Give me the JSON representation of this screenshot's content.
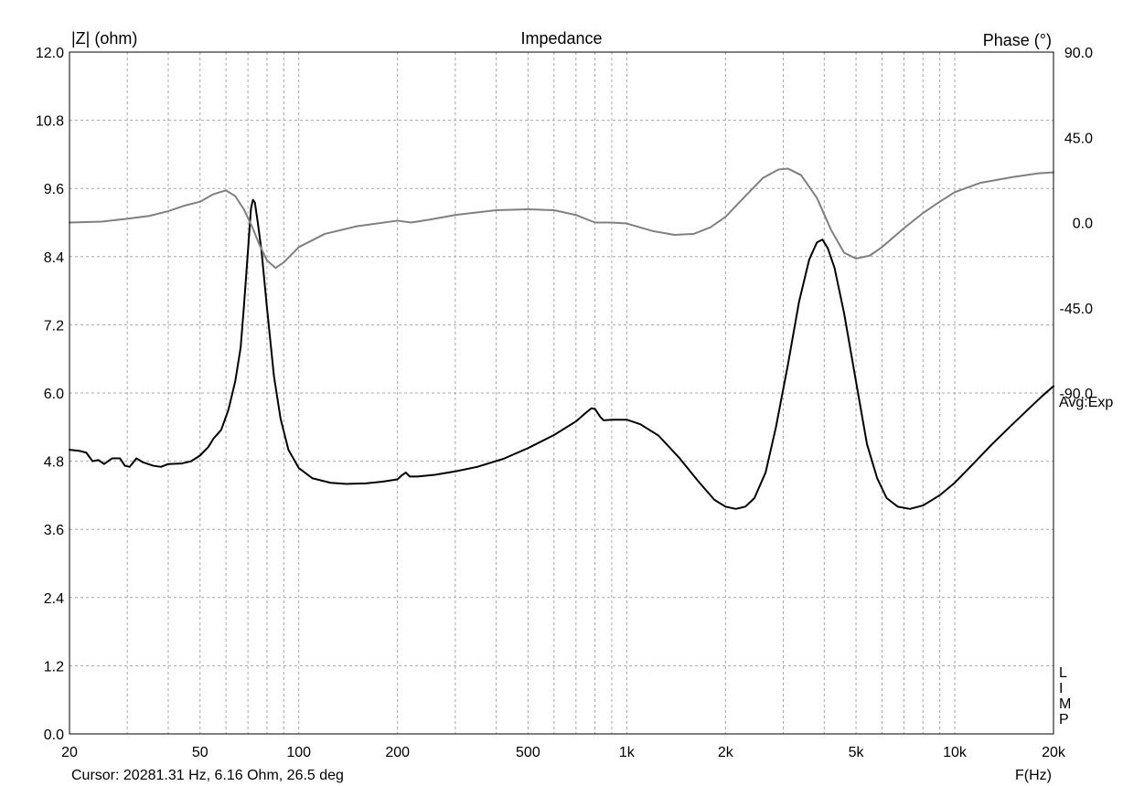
{
  "chart_data": {
    "type": "line",
    "title": "Impedance",
    "ylabel": "|Z| (ohm)",
    "y2label": "Phase (°)",
    "xlabel": "F(Hz)",
    "x_scale": "log",
    "xlim": [
      20,
      20000
    ],
    "ylim": [
      0.0,
      12.0
    ],
    "y2lim": [
      -270,
      90
    ],
    "grid": true,
    "x_ticks": [
      {
        "v": 20,
        "label": "20"
      },
      {
        "v": 50,
        "label": "50"
      },
      {
        "v": 100,
        "label": "100"
      },
      {
        "v": 200,
        "label": "200"
      },
      {
        "v": 500,
        "label": "500"
      },
      {
        "v": 1000,
        "label": "1k"
      },
      {
        "v": 2000,
        "label": "2k"
      },
      {
        "v": 5000,
        "label": "5k"
      },
      {
        "v": 10000,
        "label": "10k"
      },
      {
        "v": 20000,
        "label": "20k"
      }
    ],
    "y_ticks": [
      "0.0",
      "1.2",
      "2.4",
      "3.6",
      "4.8",
      "6.0",
      "7.2",
      "8.4",
      "9.6",
      "10.8",
      "12.0"
    ],
    "y2_ticks": [
      {
        "v": 90,
        "label": "90.0"
      },
      {
        "v": 45,
        "label": "45.0"
      },
      {
        "v": 0,
        "label": "0.0"
      },
      {
        "v": -45,
        "label": "-45.0"
      },
      {
        "v": -90,
        "label": "-90.0"
      }
    ],
    "avg_label": "Avg:Exp",
    "limp_label": [
      "L",
      "I",
      "M",
      "P"
    ],
    "cursor_text": "Cursor: 20281.31 Hz, 6.16 Ohm, 26.5 deg",
    "series": [
      {
        "axis": "left",
        "color": "#000000",
        "points": [
          [
            20,
            5.0
          ],
          [
            21.5,
            4.98
          ],
          [
            22.5,
            4.95
          ],
          [
            23.5,
            4.8
          ],
          [
            24.5,
            4.82
          ],
          [
            25.5,
            4.75
          ],
          [
            27,
            4.85
          ],
          [
            28.5,
            4.85
          ],
          [
            29.5,
            4.72
          ],
          [
            30.5,
            4.7
          ],
          [
            32,
            4.85
          ],
          [
            33.5,
            4.78
          ],
          [
            36,
            4.72
          ],
          [
            38,
            4.7
          ],
          [
            40,
            4.75
          ],
          [
            44,
            4.76
          ],
          [
            47,
            4.8
          ],
          [
            50,
            4.9
          ],
          [
            53,
            5.05
          ],
          [
            55,
            5.2
          ],
          [
            58,
            5.35
          ],
          [
            61,
            5.7
          ],
          [
            64,
            6.2
          ],
          [
            66.5,
            6.8
          ],
          [
            68,
            7.5
          ],
          [
            70,
            8.5
          ],
          [
            71.5,
            9.25
          ],
          [
            72.5,
            9.4
          ],
          [
            73.5,
            9.35
          ],
          [
            75,
            9.0
          ],
          [
            77,
            8.5
          ],
          [
            80,
            7.5
          ],
          [
            84,
            6.3
          ],
          [
            88,
            5.55
          ],
          [
            93,
            5.0
          ],
          [
            100,
            4.68
          ],
          [
            110,
            4.5
          ],
          [
            125,
            4.42
          ],
          [
            140,
            4.4
          ],
          [
            160,
            4.41
          ],
          [
            180,
            4.44
          ],
          [
            200,
            4.48
          ],
          [
            206,
            4.55
          ],
          [
            212,
            4.6
          ],
          [
            218,
            4.53
          ],
          [
            230,
            4.53
          ],
          [
            260,
            4.56
          ],
          [
            300,
            4.62
          ],
          [
            350,
            4.7
          ],
          [
            420,
            4.84
          ],
          [
            500,
            5.03
          ],
          [
            600,
            5.26
          ],
          [
            700,
            5.5
          ],
          [
            750,
            5.65
          ],
          [
            780,
            5.73
          ],
          [
            800,
            5.72
          ],
          [
            830,
            5.58
          ],
          [
            850,
            5.52
          ],
          [
            900,
            5.53
          ],
          [
            1000,
            5.53
          ],
          [
            1100,
            5.45
          ],
          [
            1250,
            5.25
          ],
          [
            1450,
            4.85
          ],
          [
            1650,
            4.45
          ],
          [
            1850,
            4.12
          ],
          [
            2000,
            4.0
          ],
          [
            2150,
            3.96
          ],
          [
            2300,
            4.0
          ],
          [
            2450,
            4.15
          ],
          [
            2650,
            4.6
          ],
          [
            2850,
            5.4
          ],
          [
            3100,
            6.5
          ],
          [
            3350,
            7.6
          ],
          [
            3600,
            8.35
          ],
          [
            3800,
            8.65
          ],
          [
            3950,
            8.7
          ],
          [
            4100,
            8.55
          ],
          [
            4300,
            8.2
          ],
          [
            4600,
            7.4
          ],
          [
            5000,
            6.2
          ],
          [
            5400,
            5.1
          ],
          [
            5800,
            4.5
          ],
          [
            6200,
            4.15
          ],
          [
            6700,
            4.0
          ],
          [
            7300,
            3.96
          ],
          [
            8000,
            4.02
          ],
          [
            9000,
            4.2
          ],
          [
            10000,
            4.42
          ],
          [
            11500,
            4.78
          ],
          [
            13000,
            5.1
          ],
          [
            15000,
            5.45
          ],
          [
            17000,
            5.75
          ],
          [
            18500,
            5.95
          ],
          [
            20000,
            6.12
          ]
        ]
      },
      {
        "axis": "right",
        "color": "#808080",
        "points": [
          [
            20,
            0.0
          ],
          [
            25,
            0.5
          ],
          [
            30,
            2.0
          ],
          [
            35,
            3.5
          ],
          [
            40,
            6.0
          ],
          [
            45,
            9.0
          ],
          [
            50,
            11.0
          ],
          [
            55,
            15.0
          ],
          [
            60,
            17.0
          ],
          [
            64,
            14.0
          ],
          [
            68,
            7.0
          ],
          [
            72,
            -2.0
          ],
          [
            76,
            -12.0
          ],
          [
            80,
            -20.0
          ],
          [
            85,
            -24.0
          ],
          [
            90,
            -21.0
          ],
          [
            100,
            -13.0
          ],
          [
            120,
            -6.0
          ],
          [
            150,
            -2.0
          ],
          [
            200,
            1.0
          ],
          [
            220,
            0.0
          ],
          [
            250,
            1.5
          ],
          [
            300,
            4.0
          ],
          [
            400,
            6.5
          ],
          [
            500,
            7.0
          ],
          [
            600,
            6.5
          ],
          [
            700,
            4.0
          ],
          [
            800,
            0.0
          ],
          [
            900,
            0.0
          ],
          [
            1000,
            -0.5
          ],
          [
            1200,
            -4.5
          ],
          [
            1400,
            -6.5
          ],
          [
            1600,
            -6.0
          ],
          [
            1800,
            -2.5
          ],
          [
            2000,
            3.0
          ],
          [
            2300,
            14.0
          ],
          [
            2600,
            23.5
          ],
          [
            2900,
            28.0
          ],
          [
            3100,
            28.5
          ],
          [
            3400,
            25.0
          ],
          [
            3800,
            13.0
          ],
          [
            4200,
            -4.0
          ],
          [
            4600,
            -16.0
          ],
          [
            5000,
            -19.0
          ],
          [
            5500,
            -17.5
          ],
          [
            6000,
            -13.0
          ],
          [
            7000,
            -3.0
          ],
          [
            8000,
            5.0
          ],
          [
            9000,
            11.0
          ],
          [
            10000,
            16.0
          ],
          [
            12000,
            21.0
          ],
          [
            15000,
            24.0
          ],
          [
            18000,
            26.0
          ],
          [
            20000,
            26.5
          ]
        ]
      }
    ]
  }
}
